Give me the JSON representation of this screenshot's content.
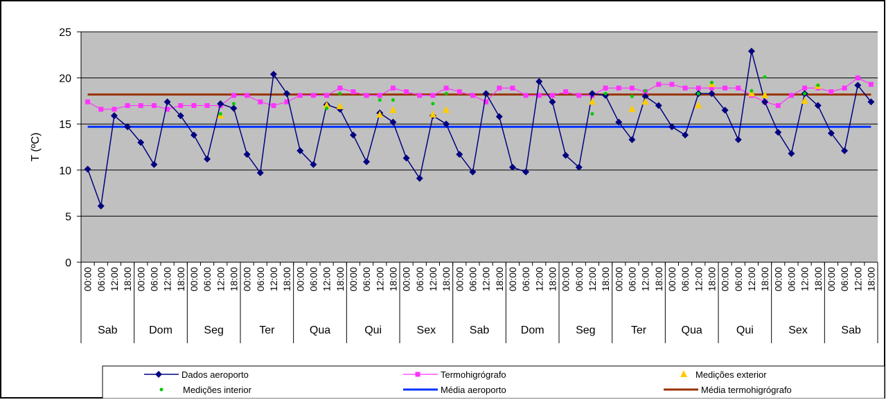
{
  "colors": {
    "plot_bg": "#c0c0c0",
    "airport": "#000080",
    "thermo": "#ff33ff",
    "exterior": "#ffcc00",
    "interior": "#00cc00",
    "airport_mean": "#0033ff",
    "thermo_mean": "#993300"
  },
  "chart_data": {
    "type": "line",
    "title": "",
    "ylabel": "T (ºC)",
    "xlabel": "",
    "ylim": [
      0,
      25
    ],
    "yticks": [
      0,
      5,
      10,
      15,
      20,
      25
    ],
    "grid": true,
    "legend_position": "bottom",
    "x": [
      "00:00",
      "06:00",
      "12:00",
      "18:00",
      "00:00",
      "06:00",
      "12:00",
      "18:00",
      "00:00",
      "06:00",
      "12:00",
      "18:00",
      "00:00",
      "06:00",
      "12:00",
      "18:00",
      "00:00",
      "06:00",
      "12:00",
      "18:00",
      "00:00",
      "06:00",
      "12:00",
      "18:00",
      "00:00",
      "06:00",
      "12:00",
      "18:00",
      "00:00",
      "06:00",
      "12:00",
      "18:00",
      "00:00",
      "06:00",
      "12:00",
      "18:00",
      "00:00",
      "06:00",
      "12:00",
      "18:00",
      "00:00",
      "06:00",
      "12:00",
      "18:00",
      "00:00",
      "06:00",
      "12:00",
      "18:00",
      "00:00",
      "06:00",
      "12:00",
      "18:00",
      "00:00",
      "06:00",
      "12:00",
      "18:00",
      "00:00",
      "06:00",
      "12:00",
      "18:00"
    ],
    "day_groups": [
      {
        "label": "Sab",
        "start": 0,
        "count": 4
      },
      {
        "label": "Dom",
        "start": 4,
        "count": 4
      },
      {
        "label": "Seg",
        "start": 8,
        "count": 4
      },
      {
        "label": "Ter",
        "start": 12,
        "count": 4
      },
      {
        "label": "Qua",
        "start": 16,
        "count": 4
      },
      {
        "label": "Qui",
        "start": 20,
        "count": 4
      },
      {
        "label": "Sex",
        "start": 24,
        "count": 4
      },
      {
        "label": "Sab",
        "start": 28,
        "count": 4
      },
      {
        "label": "Dom",
        "start": 32,
        "count": 4
      },
      {
        "label": "Seg",
        "start": 36,
        "count": 4
      },
      {
        "label": "Ter",
        "start": 40,
        "count": 4
      },
      {
        "label": "Qua",
        "start": 44,
        "count": 4
      },
      {
        "label": "Qui",
        "start": 48,
        "count": 4
      },
      {
        "label": "Sex",
        "start": 52,
        "count": 4
      },
      {
        "label": "Sab",
        "start": 56,
        "count": 4
      }
    ],
    "series": [
      {
        "name": "Dados aeroporto",
        "key": "airport",
        "values": [
          10.1,
          6.1,
          15.9,
          14.7,
          13.0,
          10.6,
          17.4,
          15.9,
          13.8,
          11.2,
          17.2,
          16.7,
          11.7,
          9.7,
          20.4,
          18.3,
          12.1,
          10.6,
          17.1,
          16.6,
          13.8,
          10.9,
          16.2,
          15.2,
          11.3,
          9.1,
          15.9,
          15.0,
          11.7,
          9.8,
          18.3,
          15.8,
          10.3,
          9.8,
          19.6,
          17.4,
          11.6,
          10.3,
          18.3,
          18.1,
          15.2,
          13.3,
          18.0,
          17.0,
          14.7,
          13.8,
          18.3,
          18.3,
          16.5,
          13.3,
          22.9,
          17.4,
          14.1,
          11.8,
          18.3,
          17.0,
          14.0,
          12.1,
          19.2,
          17.4
        ]
      },
      {
        "name": "Termohigrógrafo",
        "key": "thermo",
        "values": [
          17.4,
          16.6,
          16.6,
          17.0,
          17.0,
          17.0,
          16.6,
          17.0,
          17.0,
          17.0,
          17.0,
          18.1,
          18.1,
          17.4,
          17.0,
          17.4,
          18.1,
          18.1,
          18.1,
          18.9,
          18.5,
          18.1,
          18.1,
          18.9,
          18.5,
          18.1,
          18.1,
          18.9,
          18.5,
          18.1,
          17.4,
          18.9,
          18.9,
          18.1,
          18.1,
          18.1,
          18.5,
          18.1,
          18.1,
          18.9,
          18.9,
          18.9,
          18.5,
          19.3,
          19.3,
          18.9,
          18.9,
          18.9,
          18.9,
          18.9,
          18.1,
          17.4,
          17.0,
          18.1,
          18.9,
          18.9,
          18.5,
          18.9,
          20.0,
          19.3
        ]
      },
      {
        "name": "Medições exterior",
        "key": "exterior",
        "points": [
          [
            10,
            15.9
          ],
          [
            18,
            17.0
          ],
          [
            19,
            16.9
          ],
          [
            22,
            16.0
          ],
          [
            23,
            16.5
          ],
          [
            26,
            16.0
          ],
          [
            27,
            16.5
          ],
          [
            38,
            17.4
          ],
          [
            41,
            16.6
          ],
          [
            42,
            17.4
          ],
          [
            46,
            17.0
          ],
          [
            47,
            19.3
          ],
          [
            50,
            18.3
          ],
          [
            51,
            18.1
          ],
          [
            54,
            17.5
          ],
          [
            55,
            19.1
          ]
        ]
      },
      {
        "name": "Medições interior",
        "key": "interior",
        "points": [
          [
            10,
            16.1
          ],
          [
            11,
            17.2
          ],
          [
            18,
            16.7
          ],
          [
            19,
            18.3
          ],
          [
            22,
            17.6
          ],
          [
            23,
            17.6
          ],
          [
            26,
            17.2
          ],
          [
            27,
            18.3
          ],
          [
            38,
            16.1
          ],
          [
            39,
            18.3
          ],
          [
            41,
            18.0
          ],
          [
            42,
            18.6
          ],
          [
            46,
            18.3
          ],
          [
            47,
            19.5
          ],
          [
            50,
            18.6
          ],
          [
            51,
            20.1
          ],
          [
            54,
            18.3
          ],
          [
            55,
            19.2
          ]
        ]
      },
      {
        "name": "Média aeroporto",
        "key": "airport_mean",
        "constant": 14.7
      },
      {
        "name": "Média termohigrógrafo",
        "key": "thermo_mean",
        "constant": 18.2
      }
    ]
  }
}
